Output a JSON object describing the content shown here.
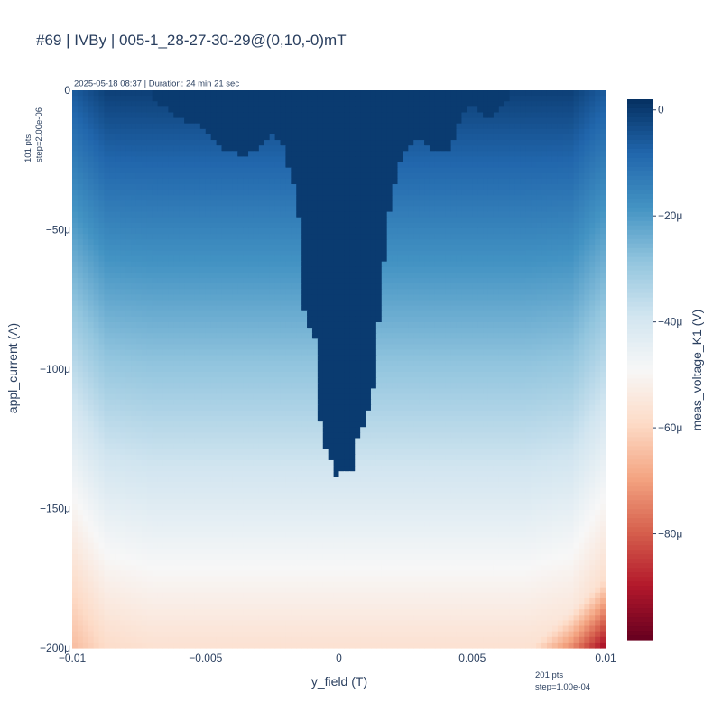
{
  "chart_data": {
    "type": "heatmap",
    "title": "#69 | IVBy | 005-1_28-27-30-29@(0,10,-0)mT",
    "subtitle": "2025-05-18 08:37 | Duration: 24 min 21 sec",
    "xlabel": "y_field (T)",
    "ylabel": "appl_current (A)",
    "colorbar_label": "meas_voltage_K1 (V)",
    "x_range": [
      -0.01,
      0.01
    ],
    "y_range": [
      -0.0002,
      0
    ],
    "x_ticks": [
      "−0.01",
      "−0.005",
      "0",
      "0.005",
      "0.01"
    ],
    "x_tick_values": [
      -0.01,
      -0.005,
      0,
      0.005,
      0.01
    ],
    "y_ticks": [
      "0",
      "−50μ",
      "−100μ",
      "−150μ",
      "−200μ"
    ],
    "y_tick_values": [
      0,
      -5e-05,
      -0.0001,
      -0.00015,
      -0.0002
    ],
    "colorbar_ticks": [
      "0",
      "−20μ",
      "−40μ",
      "−60μ",
      "−80μ"
    ],
    "colorbar_tick_values": [
      0,
      -2e-05,
      -4e-05,
      -6e-05,
      -8e-05
    ],
    "colorbar_range": [
      -0.0001,
      2e-06
    ],
    "x_annotation": [
      "201 pts",
      "step=1.00e-04"
    ],
    "y_annotation": [
      "101 pts",
      "step=2.00e-06"
    ],
    "x_points": 201,
    "y_points": 101,
    "colorscale": "RdBu",
    "superconducting_dome": [
      [
        -0.007,
        -3e-06
      ],
      [
        -0.0066,
        -6e-06
      ],
      [
        -0.0062,
        -9e-06
      ],
      [
        -0.0058,
        -1.1e-05
      ],
      [
        -0.0054,
        -1.2e-05
      ],
      [
        -0.005,
        -1.5e-05
      ],
      [
        -0.0046,
        -1.9e-05
      ],
      [
        -0.0042,
        -2.2e-05
      ],
      [
        -0.0038,
        -2.3e-05
      ],
      [
        -0.0034,
        -2.3e-05
      ],
      [
        -0.003,
        -2.1e-05
      ],
      [
        -0.0027,
        -1.7e-05
      ],
      [
        -0.0024,
        -1.6e-05
      ],
      [
        -0.0021,
        -2e-05
      ],
      [
        -0.0019,
        -2.7e-05
      ],
      [
        -0.0017,
        -3.3e-05
      ],
      [
        -0.0016,
        -4.5e-05
      ],
      [
        -0.0014,
        -4.7e-05
      ],
      [
        -0.0013,
        -8e-05
      ],
      [
        -0.0011,
        -8.5e-05
      ],
      [
        -0.0009,
        -9e-05
      ],
      [
        -0.0008,
        -0.000105
      ],
      [
        -0.0007,
        -0.000118
      ],
      [
        -0.0006,
        -0.000123
      ],
      [
        -0.0005,
        -0.000128
      ],
      [
        -0.0004,
        -0.000133
      ],
      [
        -0.0003,
        -0.000133
      ],
      [
        -0.0002,
        -0.000137
      ],
      [
        0.0,
        -0.00014
      ],
      [
        0.0002,
        -0.000132
      ],
      [
        0.0003,
        -0.000136
      ],
      [
        0.0004,
        -0.000134
      ],
      [
        0.0005,
        -0.000136
      ],
      [
        0.0006,
        -0.000133
      ],
      [
        0.0007,
        -0.000125
      ],
      [
        0.0008,
        -0.000117
      ],
      [
        0.0009,
        -0.00012
      ],
      [
        0.001,
        -0.00011
      ],
      [
        0.0011,
        -0.000115
      ],
      [
        0.0012,
        -0.00011
      ],
      [
        0.0013,
        -0.000107
      ],
      [
        0.0014,
        -9.6e-05
      ],
      [
        0.0015,
        -8.4e-05
      ],
      [
        0.0016,
        -7.3e-05
      ],
      [
        0.0017,
        -6.2e-05
      ],
      [
        0.0018,
        -5e-05
      ],
      [
        0.0019,
        -4.4e-05
      ],
      [
        0.002,
        -3.8e-05
      ],
      [
        0.0021,
        -3.3e-05
      ],
      [
        0.0022,
        -2.9e-05
      ],
      [
        0.0023,
        -2.5e-05
      ],
      [
        0.0024,
        -2.2e-05
      ],
      [
        0.0026,
        -2.1e-05
      ],
      [
        0.0028,
        -1.9e-05
      ],
      [
        0.003,
        -1.7e-05
      ],
      [
        0.0032,
        -1.8e-05
      ],
      [
        0.0034,
        -2e-05
      ],
      [
        0.0036,
        -2.2e-05
      ],
      [
        0.0038,
        -2.3e-05
      ],
      [
        0.004,
        -2.2e-05
      ],
      [
        0.0042,
        -2e-05
      ],
      [
        0.0044,
        -1.5e-05
      ],
      [
        0.0046,
        -1e-05
      ],
      [
        0.0048,
        -6e-06
      ],
      [
        0.005,
        -4e-06
      ],
      [
        0.0052,
        -7e-06
      ],
      [
        0.0054,
        -9e-06
      ],
      [
        0.0056,
        -1e-05
      ],
      [
        0.0058,
        -9e-06
      ],
      [
        0.006,
        -7e-06
      ],
      [
        0.0062,
        -5e-06
      ],
      [
        0.0064,
        -3e-06
      ]
    ]
  }
}
